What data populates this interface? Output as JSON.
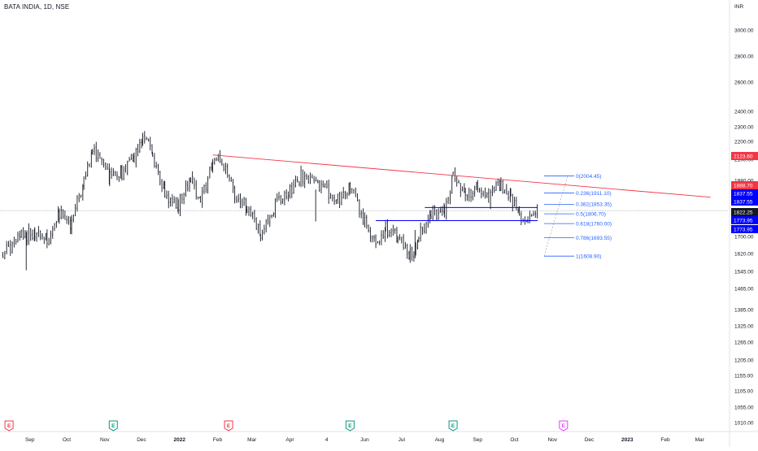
{
  "header": {
    "title": "BATA INDIA, 1D, NSE"
  },
  "chart_data": {
    "type": "candlestick",
    "title": "BATA INDIA, 1D, NSE",
    "currency_label": "INR",
    "y_scale": "log",
    "y_ticks": [
      3000.0,
      2800.0,
      2600.0,
      2400.0,
      2300.0,
      2200.0,
      2100.0,
      1980.0,
      1900.0,
      1700.0,
      1620.0,
      1545.0,
      1465.0,
      1385.0,
      1325.0,
      1265.0,
      1205.0,
      1155.0,
      1105.0,
      1055.0,
      1010.0
    ],
    "x_ticks": [
      "Sep",
      "Oct",
      "Nov",
      "Dec",
      "2022",
      "Feb",
      "Mar",
      "Apr",
      "4",
      "Jun",
      "Jul",
      "Aug",
      "Sep",
      "Oct",
      "Nov",
      "Dec",
      "2023",
      "Feb",
      "Mar"
    ],
    "price_tags": [
      {
        "value": "2123.60",
        "color": "#f23645"
      },
      {
        "value": "1888.70",
        "color": "#f23645"
      },
      {
        "value": "1837.55",
        "color": "#0000ff"
      },
      {
        "value": "1837.55",
        "color": "#0000ff"
      },
      {
        "value": "1822.25",
        "color": "#131722"
      },
      {
        "value": "1773.95",
        "color": "#0000ff"
      },
      {
        "value": "1773.95",
        "color": "#0000ff"
      }
    ],
    "fibonacci": [
      {
        "label": "0(2004.45)",
        "level": 0,
        "price": 2004.45
      },
      {
        "label": "0.236(1911.10)",
        "level": 0.236,
        "price": 1911.1
      },
      {
        "label": "0.382(1853.35)",
        "level": 0.382,
        "price": 1853.35
      },
      {
        "label": "0.5(1806.70)",
        "level": 0.5,
        "price": 1806.7
      },
      {
        "label": "0.618(1760.00)",
        "level": 0.618,
        "price": 1760.0
      },
      {
        "label": "0.786(1693.55)",
        "level": 0.786,
        "price": 1693.55
      },
      {
        "label": "1(1608.90)",
        "level": 1,
        "price": 1608.9
      }
    ],
    "trendline": {
      "color": "#f23645",
      "from": {
        "date": "2022-01-28",
        "price": 2123.6
      },
      "to": {
        "date": "2023-03-10",
        "price": 1888.7
      }
    },
    "horizontal_levels": [
      {
        "price": 1837.55,
        "color": "#0000ff",
        "from": "2022-07-20",
        "to": "2022-10-20"
      },
      {
        "price": 1773.95,
        "color": "#0000ff",
        "from": "2022-06-10",
        "to": "2022-10-20"
      }
    ],
    "current_price_line": {
      "price": 1822.25,
      "color": "#9598a1"
    },
    "event_markers": [
      {
        "letter": "E",
        "type": "earnings",
        "color": "#f23645",
        "date": "2021-08-15"
      },
      {
        "letter": "E",
        "type": "earnings",
        "color": "#089981",
        "date": "2021-11-08"
      },
      {
        "letter": "E",
        "type": "earnings",
        "color": "#f23645",
        "date": "2022-02-10"
      },
      {
        "letter": "E",
        "type": "earnings",
        "color": "#089981",
        "date": "2022-05-20"
      },
      {
        "letter": "E",
        "type": "earnings",
        "color": "#089981",
        "date": "2022-08-12"
      },
      {
        "letter": "E",
        "type": "earnings",
        "color": "#e040fb",
        "date": "2022-11-10"
      }
    ],
    "price_path": [
      {
        "date": "2021-08-10",
        "price": 1620
      },
      {
        "date": "2021-08-25",
        "price": 1700
      },
      {
        "date": "2021-09-05",
        "price": 1720
      },
      {
        "date": "2021-09-15",
        "price": 1680
      },
      {
        "date": "2021-09-25",
        "price": 1800
      },
      {
        "date": "2021-10-05",
        "price": 1760
      },
      {
        "date": "2021-10-15",
        "price": 1980
      },
      {
        "date": "2021-10-22",
        "price": 2160
      },
      {
        "date": "2021-11-05",
        "price": 2000
      },
      {
        "date": "2021-11-15",
        "price": 2020
      },
      {
        "date": "2021-11-25",
        "price": 2100
      },
      {
        "date": "2021-12-02",
        "price": 2250
      },
      {
        "date": "2021-12-10",
        "price": 2130
      },
      {
        "date": "2021-12-20",
        "price": 1900
      },
      {
        "date": "2021-12-31",
        "price": 1850
      },
      {
        "date": "2022-01-10",
        "price": 2000
      },
      {
        "date": "2022-01-18",
        "price": 1860
      },
      {
        "date": "2022-01-28",
        "price": 2070
      },
      {
        "date": "2022-02-03",
        "price": 2100
      },
      {
        "date": "2022-02-15",
        "price": 1900
      },
      {
        "date": "2022-02-25",
        "price": 1840
      },
      {
        "date": "2022-03-08",
        "price": 1700
      },
      {
        "date": "2022-03-20",
        "price": 1850
      },
      {
        "date": "2022-04-01",
        "price": 1920
      },
      {
        "date": "2022-04-10",
        "price": 2000
      },
      {
        "date": "2022-04-25",
        "price": 1950
      },
      {
        "date": "2022-05-10",
        "price": 1880
      },
      {
        "date": "2022-05-20",
        "price": 1960
      },
      {
        "date": "2022-06-01",
        "price": 1760
      },
      {
        "date": "2022-06-10",
        "price": 1670
      },
      {
        "date": "2022-06-18",
        "price": 1740
      },
      {
        "date": "2022-06-28",
        "price": 1700
      },
      {
        "date": "2022-07-08",
        "price": 1620
      },
      {
        "date": "2022-07-15",
        "price": 1700
      },
      {
        "date": "2022-07-25",
        "price": 1800
      },
      {
        "date": "2022-08-05",
        "price": 1820
      },
      {
        "date": "2022-08-12",
        "price": 1990
      },
      {
        "date": "2022-08-22",
        "price": 1900
      },
      {
        "date": "2022-09-01",
        "price": 1950
      },
      {
        "date": "2022-09-10",
        "price": 1880
      },
      {
        "date": "2022-09-20",
        "price": 1960
      },
      {
        "date": "2022-09-28",
        "price": 1900
      },
      {
        "date": "2022-10-05",
        "price": 1800
      },
      {
        "date": "2022-10-12",
        "price": 1780
      },
      {
        "date": "2022-10-20",
        "price": 1822
      }
    ],
    "grid": false,
    "legend": "none"
  }
}
